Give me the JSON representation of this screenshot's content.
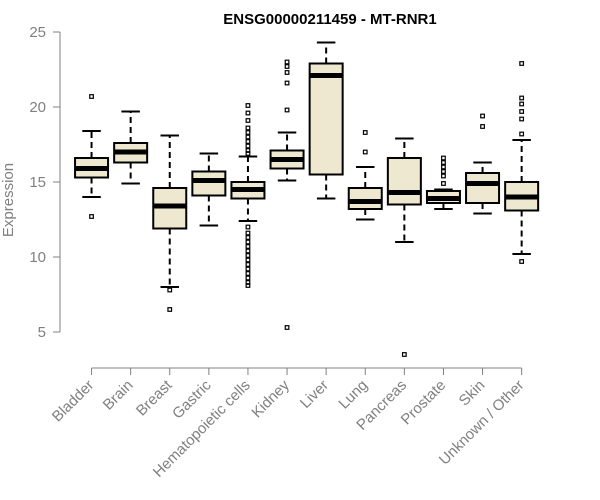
{
  "chart_data": {
    "type": "boxplot",
    "title": "ENSG00000211459 - MT-RNR1",
    "xlabel": "",
    "ylabel": "Expression",
    "ylim": [
      4,
      25.5
    ],
    "yticks": [
      5,
      10,
      15,
      20,
      25
    ],
    "grid": false,
    "legend": "none",
    "box_color": "#EEE8D0",
    "line_color": "#000000",
    "axis_color": "#808080",
    "categories": [
      "Bladder",
      "Brain",
      "Breast",
      "Gastric",
      "Hematopoietic cells",
      "Kidney",
      "Liver",
      "Lung",
      "Pancreas",
      "Prostate",
      "Skin",
      "Unknown / Other"
    ],
    "boxes": [
      {
        "name": "Bladder",
        "whisker_low": 14.0,
        "q1": 15.3,
        "median": 15.9,
        "q3": 16.6,
        "whisker_high": 18.4,
        "outliers": [
          20.7,
          12.7
        ]
      },
      {
        "name": "Brain",
        "whisker_low": 14.9,
        "q1": 16.3,
        "median": 17.0,
        "q3": 17.6,
        "whisker_high": 19.7,
        "outliers": []
      },
      {
        "name": "Breast",
        "whisker_low": 8.0,
        "q1": 11.9,
        "median": 13.4,
        "q3": 14.6,
        "whisker_high": 18.1,
        "outliers": [
          7.8,
          6.5
        ]
      },
      {
        "name": "Gastric",
        "whisker_low": 12.1,
        "q1": 14.1,
        "median": 15.1,
        "q3": 15.7,
        "whisker_high": 16.9,
        "outliers": []
      },
      {
        "name": "Hematopoietic cells",
        "whisker_low": 12.4,
        "q1": 13.9,
        "median": 14.5,
        "q3": 15.0,
        "whisker_high": 16.7,
        "outliers": [
          20.1,
          19.6,
          19.1,
          18.6,
          18.3,
          18.0,
          17.7,
          17.4,
          17.1,
          16.9,
          12.0,
          11.6,
          11.3,
          11.0,
          10.7,
          10.4,
          10.1,
          9.8,
          9.5,
          9.2,
          8.9,
          8.6,
          8.3,
          8.1
        ]
      },
      {
        "name": "Kidney",
        "whisker_low": 15.1,
        "q1": 15.9,
        "median": 16.5,
        "q3": 17.1,
        "whisker_high": 18.3,
        "outliers": [
          23.0,
          22.7,
          22.3,
          21.6,
          19.8,
          5.3
        ]
      },
      {
        "name": "Liver",
        "whisker_low": 13.9,
        "q1": 15.5,
        "median": 22.1,
        "q3": 22.9,
        "whisker_high": 24.3,
        "outliers": []
      },
      {
        "name": "Lung",
        "whisker_low": 12.5,
        "q1": 13.2,
        "median": 13.7,
        "q3": 14.6,
        "whisker_high": 16.0,
        "outliers": [
          18.3,
          17.0
        ]
      },
      {
        "name": "Pancreas",
        "whisker_low": 11.0,
        "q1": 13.5,
        "median": 14.3,
        "q3": 16.6,
        "whisker_high": 17.9,
        "outliers": [
          3.5
        ]
      },
      {
        "name": "Prostate",
        "whisker_low": 13.2,
        "q1": 13.6,
        "median": 13.9,
        "q3": 14.4,
        "whisker_high": 14.5,
        "outliers": [
          16.6,
          16.3,
          16.0,
          15.7,
          15.4,
          14.9
        ]
      },
      {
        "name": "Skin",
        "whisker_low": 12.9,
        "q1": 13.6,
        "median": 14.9,
        "q3": 15.6,
        "whisker_high": 16.3,
        "outliers": [
          19.4,
          18.7
        ]
      },
      {
        "name": "Unknown / Other",
        "whisker_low": 10.2,
        "q1": 13.1,
        "median": 14.0,
        "q3": 15.0,
        "whisker_high": 17.8,
        "outliers": [
          22.9,
          20.6,
          20.2,
          19.7,
          19.2,
          18.2,
          9.7
        ]
      }
    ]
  }
}
